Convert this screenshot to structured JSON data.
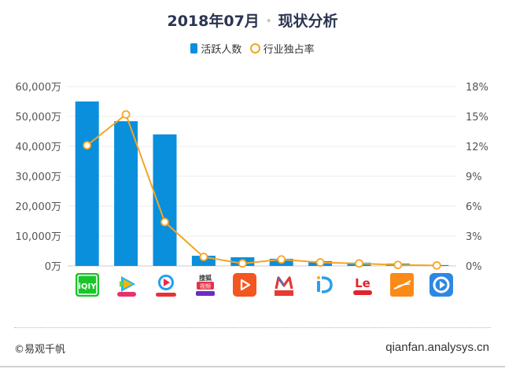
{
  "header": {
    "title_date": "2018年07月",
    "title_separator": "•",
    "title_topic": "现状分析"
  },
  "legend": {
    "bar_label": "活跃人数",
    "line_label": "行业独占率"
  },
  "colors": {
    "bar": "#0a8fdc",
    "line": "#f5a524",
    "title": "#2b3550",
    "grid": "#eeeeee",
    "axis_text": "#555555"
  },
  "chart_data": {
    "type": "bar+line",
    "title": "2018年07月 • 现状分析",
    "categories": [
      "爱奇艺",
      "腾讯视频",
      "优酷",
      "搜狐视频",
      "西瓜视频",
      "芒果TV",
      "PP视频",
      "乐视视频",
      "风行视频",
      "暴风影音"
    ],
    "series": [
      {
        "name": "活跃人数",
        "type": "bar",
        "axis": "left",
        "unit": "万",
        "values": [
          55000,
          48400,
          44000,
          3400,
          2900,
          2400,
          1600,
          1100,
          800,
          300
        ]
      },
      {
        "name": "行业独占率",
        "type": "line",
        "axis": "right",
        "unit": "%",
        "values": [
          12.1,
          15.2,
          4.4,
          0.9,
          0.25,
          0.65,
          0.35,
          0.25,
          0.1,
          0.05
        ]
      }
    ],
    "left_axis": {
      "ticks": [
        "0万",
        "10,000万",
        "20,000万",
        "30,000万",
        "40,000万",
        "50,000万",
        "60,000万"
      ],
      "range": [
        0,
        60000
      ]
    },
    "right_axis": {
      "ticks": [
        "0%",
        "3%",
        "6%",
        "9%",
        "12%",
        "15%",
        "18%"
      ],
      "range": [
        0,
        18
      ]
    },
    "grid": true,
    "legend_position": "top"
  },
  "footer": {
    "left": "©易观千帆",
    "right": "qianfan.analysys.cn"
  }
}
